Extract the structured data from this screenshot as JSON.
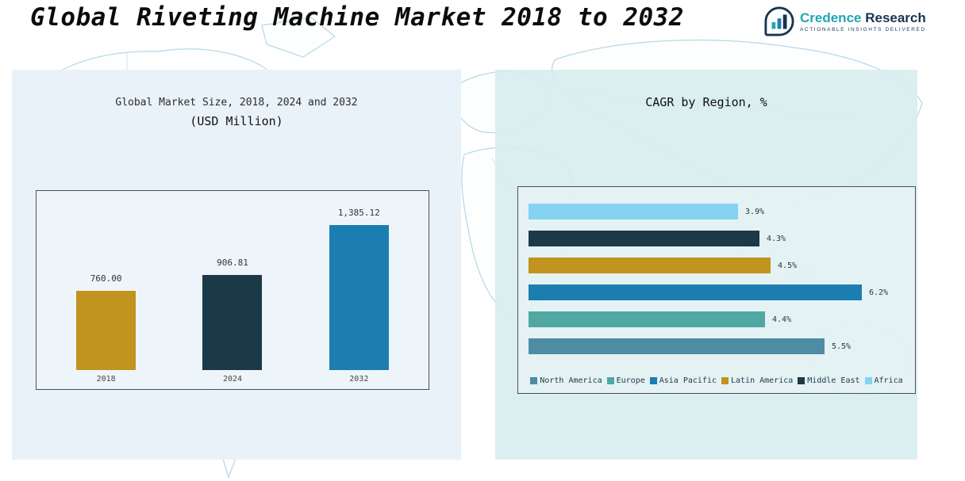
{
  "page": {
    "title": "Global Riveting Machine Market 2018 to 2032"
  },
  "logo": {
    "brand_primary": "Credence",
    "brand_secondary": " Research",
    "tagline": "Actionable Insights Delivered"
  },
  "chart_data": [
    {
      "type": "bar",
      "title": "Global Market Size, 2018, 2024 and 2032",
      "subtitle": "(USD Million)",
      "categories": [
        "2018",
        "2024",
        "2032"
      ],
      "values": [
        760.0,
        906.81,
        1385.12
      ],
      "value_labels": [
        "760.00",
        "906.81",
        "1,385.12"
      ],
      "colors": [
        "#C1931F",
        "#1C3947",
        "#1C7EB0"
      ],
      "ylabel": "USD Million",
      "ylim": [
        0,
        1500
      ],
      "grid": false
    },
    {
      "type": "bar",
      "orientation": "horizontal",
      "title": "CAGR by Region, %",
      "categories": [
        "Africa",
        "Middle East",
        "Latin America",
        "Asia Pacific",
        "Europe",
        "North America"
      ],
      "values": [
        3.9,
        4.3,
        4.5,
        6.2,
        4.4,
        5.5
      ],
      "value_labels": [
        "3.9%",
        "4.3%",
        "4.5%",
        "6.2%",
        "4.4%",
        "5.5%"
      ],
      "colors": [
        "#85D2F2",
        "#1C3947",
        "#C1931F",
        "#1C7EB0",
        "#4FA8A2",
        "#4E8CA4"
      ],
      "xlim": [
        0,
        7
      ],
      "grid": false,
      "legend_position": "bottom",
      "legend": [
        {
          "label": "North America",
          "color": "#4E8CA4"
        },
        {
          "label": "Europe",
          "color": "#4FA8A2"
        },
        {
          "label": "Asia Pacific",
          "color": "#1C7EB0"
        },
        {
          "label": "Latin America",
          "color": "#C1931F"
        },
        {
          "label": "Middle East",
          "color": "#1C3947"
        },
        {
          "label": "Africa",
          "color": "#85D2F2"
        }
      ]
    }
  ]
}
